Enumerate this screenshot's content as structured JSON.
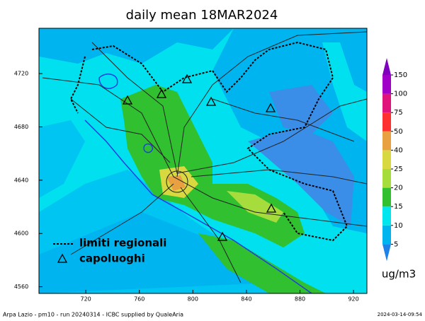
{
  "title": "daily mean 18MAR2024",
  "map": {
    "xlim": [
      685,
      930
    ],
    "ylim": [
      4555,
      4754
    ],
    "xticks": [
      720,
      760,
      800,
      840,
      880,
      920
    ],
    "yticks": [
      4560,
      4600,
      4640,
      4680,
      4720
    ]
  },
  "colorbar": {
    "levels": [
      5,
      10,
      15,
      20,
      25,
      40,
      50,
      75,
      100,
      150
    ],
    "colors": [
      "#1e82e8",
      "#00b4f0",
      "#00e6ee",
      "#30c030",
      "#a6dc3c",
      "#d8d840",
      "#e8a040",
      "#ff3030",
      "#e0147a",
      "#a000c8",
      "#8000c0"
    ],
    "unit": "ug/m3"
  },
  "legend": {
    "items": [
      "limiti regionali",
      "capoluoghi"
    ]
  },
  "footer": {
    "left": "Arpa Lazio - pm10 - run 20240314 - ICBC supplied by QualeAria",
    "right": "2024-03-14-09:54"
  }
}
